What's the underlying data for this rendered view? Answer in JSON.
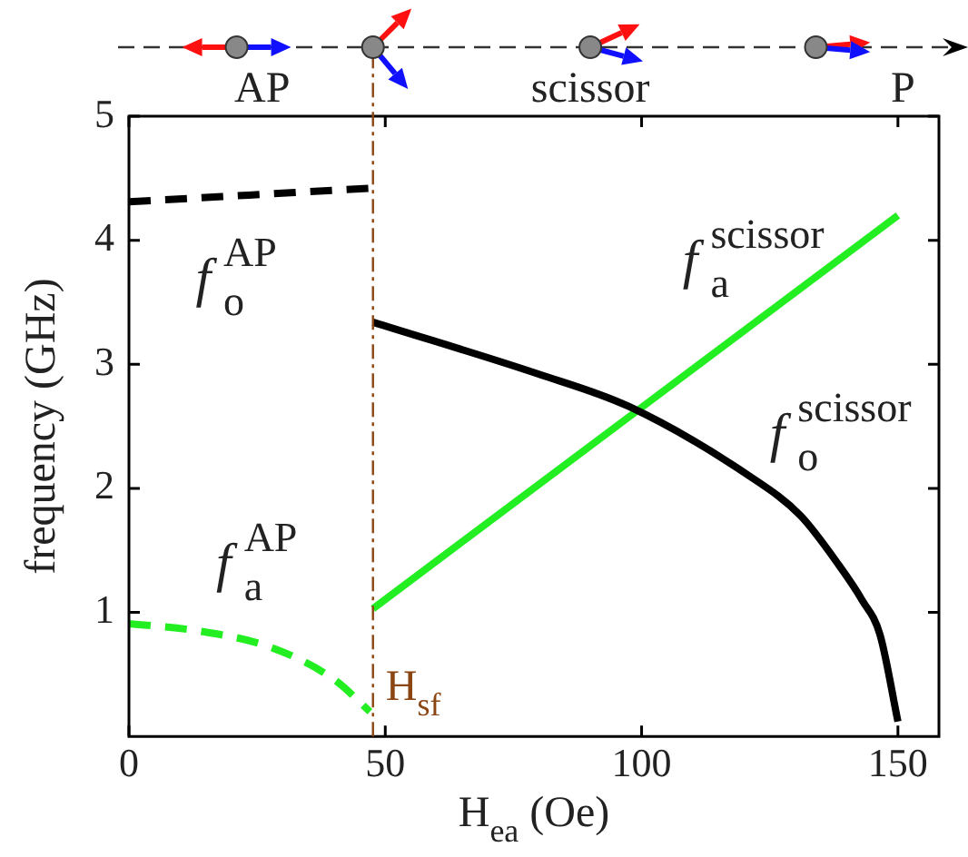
{
  "chart_data": {
    "type": "line",
    "xlabel": "H$_{ea}$ (Oe)",
    "ylabel": "frequency (GHz)",
    "xlim": [
      0,
      158
    ],
    "xticks": [
      0,
      50,
      100,
      150
    ],
    "ylim": [
      0,
      5
    ],
    "yticks": [
      1,
      2,
      3,
      4,
      5
    ],
    "grid": false,
    "legend": false,
    "marker": "none",
    "series": [
      {
        "color": "#000000",
        "line_style": "dashed",
        "x": [
          0,
          47.5
        ],
        "values": [
          4.31,
          4.42
        ]
      },
      {
        "color": "#22ee22",
        "line_style": "dashed",
        "x": [
          0,
          13.6,
          27.6,
          40,
          47
        ],
        "values": [
          0.91,
          0.85,
          0.72,
          0.46,
          0.2
        ]
      },
      {
        "color": "#000000",
        "line_style": "solid",
        "x": [
          47.6,
          80,
          97.5,
          121,
          131,
          138.5,
          143,
          146.5,
          150
        ],
        "values": [
          3.34,
          2.92,
          2.66,
          2.1,
          1.78,
          1.38,
          1.1,
          0.82,
          0.12
        ]
      },
      {
        "color": "#22ee22",
        "line_style": "solid",
        "x": [
          47.6,
          150
        ],
        "values": [
          1.03,
          4.2
        ]
      }
    ],
    "ref_lines": [
      {
        "axis": "x",
        "value": 47.6,
        "label": "H$_{sf}$",
        "color": "#8b4513",
        "line_style": "dashdot"
      }
    ],
    "annotations": [
      "AP",
      "scissor",
      "P",
      "f$_{o}$$^{AP}$",
      "f$_{a}$$^{AP}$",
      "f$_{o}$$^{scissor}$",
      "f$_{a}$$^{scissor}$"
    ]
  }
}
